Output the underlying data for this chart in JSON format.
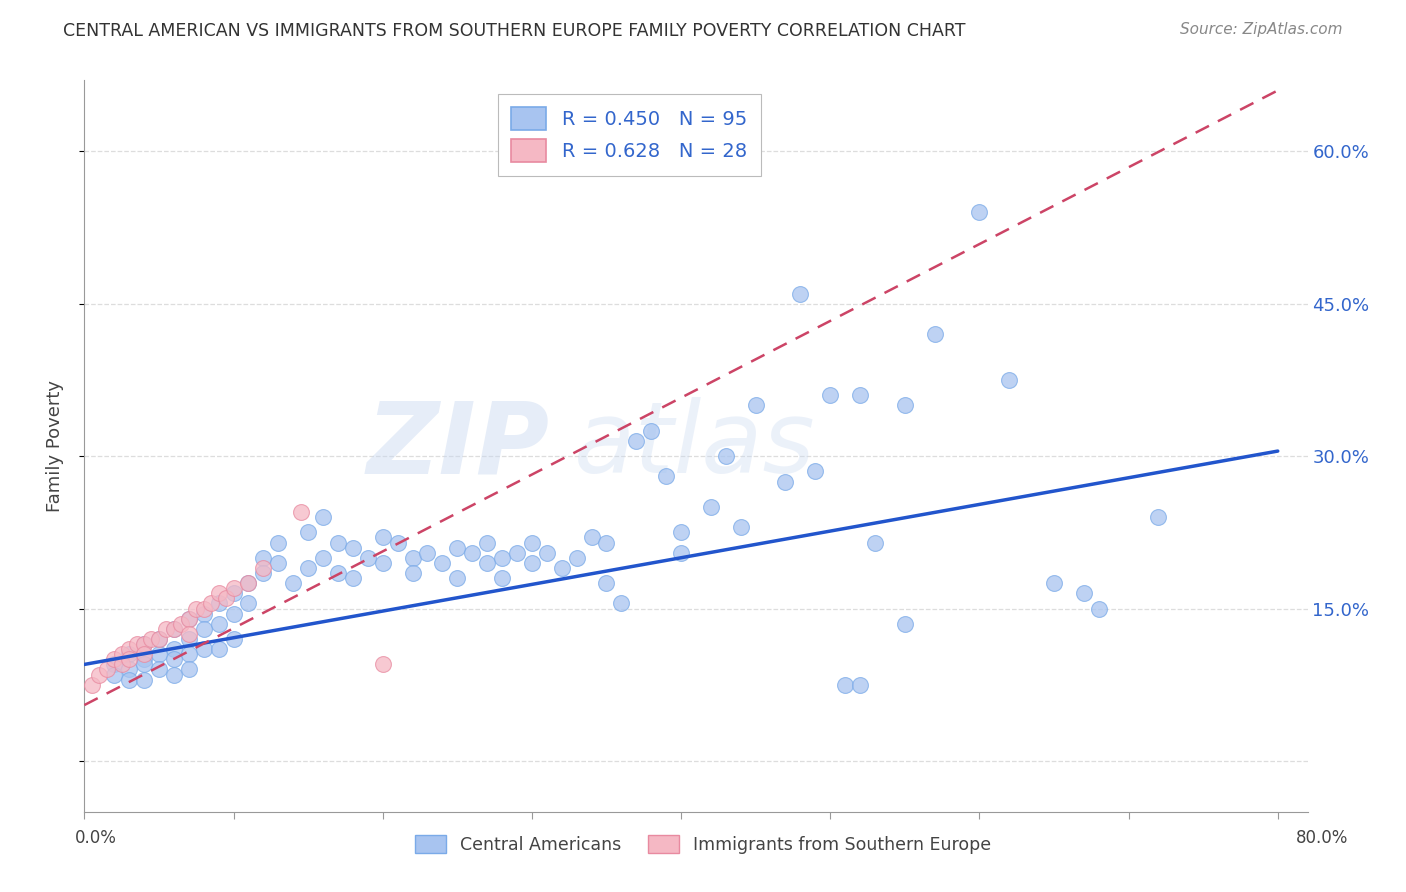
{
  "title": "CENTRAL AMERICAN VS IMMIGRANTS FROM SOUTHERN EUROPE FAMILY POVERTY CORRELATION CHART",
  "source": "Source: ZipAtlas.com",
  "ylabel": "Family Poverty",
  "xlim": [
    0.0,
    0.82
  ],
  "ylim": [
    -0.05,
    0.67
  ],
  "ytick_vals": [
    0.0,
    0.15,
    0.3,
    0.45,
    0.6
  ],
  "ytick_labels": [
    "",
    "15.0%",
    "30.0%",
    "45.0%",
    "60.0%"
  ],
  "xtick_vals": [
    0.0,
    0.1,
    0.2,
    0.3,
    0.4,
    0.5,
    0.6,
    0.7,
    0.8
  ],
  "watermark_zip": "ZIP",
  "watermark_atlas": "atlas",
  "blue_color": "#a8c4f0",
  "pink_color": "#f5b8c4",
  "blue_edge": "#7aaae8",
  "pink_edge": "#e88aa0",
  "trend_blue": "#2255cc",
  "trend_pink": "#cc4466",
  "legend_text_color": "#3366cc",
  "title_color": "#333333",
  "source_color": "#888888",
  "grid_color": "#dddddd",
  "axis_color": "#999999",
  "blue_x": [
    0.02,
    0.02,
    0.03,
    0.03,
    0.03,
    0.04,
    0.04,
    0.04,
    0.04,
    0.05,
    0.05,
    0.05,
    0.06,
    0.06,
    0.06,
    0.06,
    0.07,
    0.07,
    0.07,
    0.07,
    0.08,
    0.08,
    0.08,
    0.09,
    0.09,
    0.09,
    0.1,
    0.1,
    0.1,
    0.11,
    0.11,
    0.12,
    0.12,
    0.13,
    0.13,
    0.14,
    0.15,
    0.15,
    0.16,
    0.16,
    0.17,
    0.17,
    0.18,
    0.18,
    0.19,
    0.2,
    0.2,
    0.21,
    0.22,
    0.22,
    0.23,
    0.24,
    0.25,
    0.25,
    0.26,
    0.27,
    0.27,
    0.28,
    0.28,
    0.29,
    0.3,
    0.3,
    0.31,
    0.32,
    0.33,
    0.34,
    0.35,
    0.35,
    0.36,
    0.37,
    0.38,
    0.39,
    0.4,
    0.4,
    0.42,
    0.43,
    0.44,
    0.45,
    0.47,
    0.48,
    0.49,
    0.51,
    0.52,
    0.53,
    0.55,
    0.57,
    0.6,
    0.62,
    0.65,
    0.67,
    0.5,
    0.52,
    0.55,
    0.68,
    0.72
  ],
  "blue_y": [
    0.095,
    0.085,
    0.105,
    0.09,
    0.08,
    0.115,
    0.1,
    0.08,
    0.095,
    0.12,
    0.105,
    0.09,
    0.13,
    0.11,
    0.1,
    0.085,
    0.14,
    0.12,
    0.105,
    0.09,
    0.145,
    0.13,
    0.11,
    0.155,
    0.135,
    0.11,
    0.165,
    0.145,
    0.12,
    0.175,
    0.155,
    0.2,
    0.185,
    0.215,
    0.195,
    0.175,
    0.225,
    0.19,
    0.24,
    0.2,
    0.215,
    0.185,
    0.21,
    0.18,
    0.2,
    0.22,
    0.195,
    0.215,
    0.2,
    0.185,
    0.205,
    0.195,
    0.21,
    0.18,
    0.205,
    0.215,
    0.195,
    0.2,
    0.18,
    0.205,
    0.215,
    0.195,
    0.205,
    0.19,
    0.2,
    0.22,
    0.175,
    0.215,
    0.155,
    0.315,
    0.325,
    0.28,
    0.225,
    0.205,
    0.25,
    0.3,
    0.23,
    0.35,
    0.275,
    0.46,
    0.285,
    0.075,
    0.075,
    0.215,
    0.35,
    0.42,
    0.54,
    0.375,
    0.175,
    0.165,
    0.36,
    0.36,
    0.135,
    0.15,
    0.24
  ],
  "pink_x": [
    0.005,
    0.01,
    0.015,
    0.02,
    0.025,
    0.025,
    0.03,
    0.03,
    0.035,
    0.04,
    0.04,
    0.045,
    0.05,
    0.055,
    0.06,
    0.065,
    0.07,
    0.07,
    0.075,
    0.08,
    0.085,
    0.09,
    0.095,
    0.1,
    0.11,
    0.12,
    0.145,
    0.2
  ],
  "pink_y": [
    0.075,
    0.085,
    0.09,
    0.1,
    0.105,
    0.095,
    0.11,
    0.1,
    0.115,
    0.115,
    0.105,
    0.12,
    0.12,
    0.13,
    0.13,
    0.135,
    0.14,
    0.125,
    0.15,
    0.15,
    0.155,
    0.165,
    0.16,
    0.17,
    0.175,
    0.19,
    0.245,
    0.095
  ],
  "blue_trend_x": [
    0.0,
    0.8
  ],
  "blue_trend_y": [
    0.095,
    0.305
  ],
  "pink_trend_x": [
    0.0,
    0.8
  ],
  "pink_trend_y": [
    0.055,
    0.66
  ]
}
